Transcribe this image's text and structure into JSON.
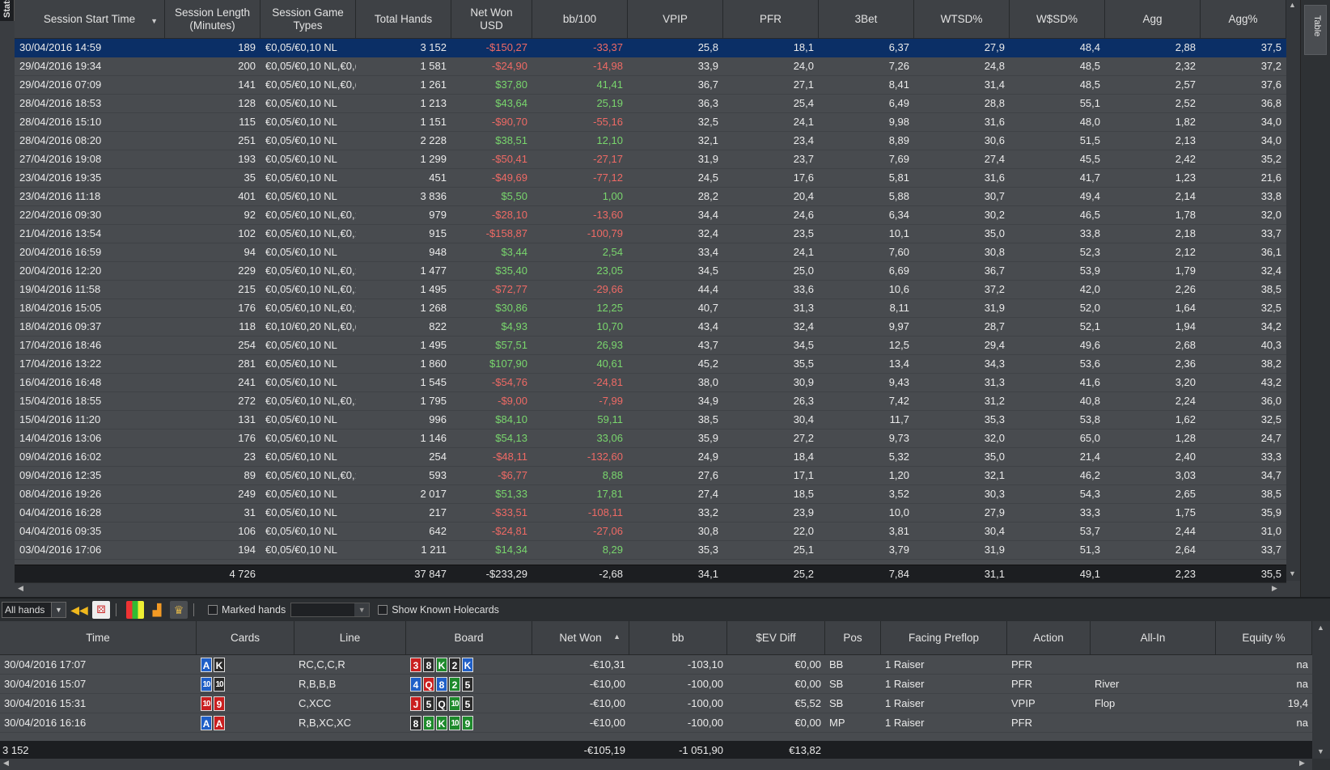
{
  "side_tabs": {
    "left": "Stats",
    "right": "Table"
  },
  "top_table": {
    "columns": [
      "Session Start Time",
      "Session Length\n(Minutes)",
      "Session Game\nTypes",
      "Total Hands",
      "Net Won\nUSD",
      "bb/100",
      "VPIP",
      "PFR",
      "3Bet",
      "WTSD%",
      "W$SD%",
      "Agg",
      "Agg%"
    ],
    "rows": [
      [
        "30/04/2016 14:59",
        "189",
        "€0,05/€0,10 NL",
        "3 152",
        "-$150,27",
        "-33,37",
        "25,8",
        "18,1",
        "6,37",
        "27,9",
        "48,4",
        "2,88",
        "37,5"
      ],
      [
        "29/04/2016 19:34",
        "200",
        "€0,05/€0,10 NL,€0,(",
        "1 581",
        "-$24,90",
        "-14,98",
        "33,9",
        "24,0",
        "7,26",
        "24,8",
        "48,5",
        "2,32",
        "37,2"
      ],
      [
        "29/04/2016 07:09",
        "141",
        "€0,05/€0,10 NL,€0,(",
        "1 261",
        "$37,80",
        "41,41",
        "36,7",
        "27,1",
        "8,41",
        "31,4",
        "48,5",
        "2,57",
        "37,6"
      ],
      [
        "28/04/2016 18:53",
        "128",
        "€0,05/€0,10 NL",
        "1 213",
        "$43,64",
        "25,19",
        "36,3",
        "25,4",
        "6,49",
        "28,8",
        "55,1",
        "2,52",
        "36,8"
      ],
      [
        "28/04/2016 15:10",
        "115",
        "€0,05/€0,10 NL",
        "1 151",
        "-$90,70",
        "-55,16",
        "32,5",
        "24,1",
        "9,98",
        "31,6",
        "48,0",
        "1,82",
        "34,0"
      ],
      [
        "28/04/2016 08:20",
        "251",
        "€0,05/€0,10 NL",
        "2 228",
        "$38,51",
        "12,10",
        "32,1",
        "23,4",
        "8,89",
        "30,6",
        "51,5",
        "2,13",
        "34,0"
      ],
      [
        "27/04/2016 19:08",
        "193",
        "€0,05/€0,10 NL",
        "1 299",
        "-$50,41",
        "-27,17",
        "31,9",
        "23,7",
        "7,69",
        "27,4",
        "45,5",
        "2,42",
        "35,2"
      ],
      [
        "23/04/2016 19:35",
        "35",
        "€0,05/€0,10 NL",
        "451",
        "-$49,69",
        "-77,12",
        "24,5",
        "17,6",
        "5,81",
        "31,6",
        "41,7",
        "1,23",
        "21,6"
      ],
      [
        "23/04/2016 11:18",
        "401",
        "€0,05/€0,10 NL",
        "3 836",
        "$5,50",
        "1,00",
        "28,2",
        "20,4",
        "5,88",
        "30,7",
        "49,4",
        "2,14",
        "33,8"
      ],
      [
        "22/04/2016 09:30",
        "92",
        "€0,05/€0,10 NL,€0,:",
        "979",
        "-$28,10",
        "-13,60",
        "34,4",
        "24,6",
        "6,34",
        "30,2",
        "46,5",
        "1,78",
        "32,0"
      ],
      [
        "21/04/2016 13:54",
        "102",
        "€0,05/€0,10 NL,€0,:",
        "915",
        "-$158,87",
        "-100,79",
        "32,4",
        "23,5",
        "10,1",
        "35,0",
        "33,8",
        "2,18",
        "33,7"
      ],
      [
        "20/04/2016 16:59",
        "94",
        "€0,05/€0,10 NL",
        "948",
        "$3,44",
        "2,54",
        "33,4",
        "24,1",
        "7,60",
        "30,8",
        "52,3",
        "2,12",
        "36,1"
      ],
      [
        "20/04/2016 12:20",
        "229",
        "€0,05/€0,10 NL,€0,:",
        "1 477",
        "$35,40",
        "23,05",
        "34,5",
        "25,0",
        "6,69",
        "36,7",
        "53,9",
        "1,79",
        "32,4"
      ],
      [
        "19/04/2016 11:58",
        "215",
        "€0,05/€0,10 NL,€0,:",
        "1 495",
        "-$72,77",
        "-29,66",
        "44,4",
        "33,6",
        "10,6",
        "37,2",
        "42,0",
        "2,26",
        "38,5"
      ],
      [
        "18/04/2016 15:05",
        "176",
        "€0,05/€0,10 NL,€0,:",
        "1 268",
        "$30,86",
        "12,25",
        "40,7",
        "31,3",
        "8,11",
        "31,9",
        "52,0",
        "1,64",
        "32,5"
      ],
      [
        "18/04/2016 09:37",
        "118",
        "€0,10/€0,20 NL,€0,(",
        "822",
        "$4,93",
        "10,70",
        "43,4",
        "32,4",
        "9,97",
        "28,7",
        "52,1",
        "1,94",
        "34,2"
      ],
      [
        "17/04/2016 18:46",
        "254",
        "€0,05/€0,10 NL",
        "1 495",
        "$57,51",
        "26,93",
        "43,7",
        "34,5",
        "12,5",
        "29,4",
        "49,6",
        "2,68",
        "40,3"
      ],
      [
        "17/04/2016 13:22",
        "281",
        "€0,05/€0,10 NL",
        "1 860",
        "$107,90",
        "40,61",
        "45,2",
        "35,5",
        "13,4",
        "34,3",
        "53,6",
        "2,36",
        "38,2"
      ],
      [
        "16/04/2016 16:48",
        "241",
        "€0,05/€0,10 NL",
        "1 545",
        "-$54,76",
        "-24,81",
        "38,0",
        "30,9",
        "9,43",
        "31,3",
        "41,6",
        "3,20",
        "43,2"
      ],
      [
        "15/04/2016 18:55",
        "272",
        "€0,05/€0,10 NL,€0,:",
        "1 795",
        "-$9,00",
        "-7,99",
        "34,9",
        "26,3",
        "7,42",
        "31,2",
        "40,8",
        "2,24",
        "36,0"
      ],
      [
        "15/04/2016 11:20",
        "131",
        "€0,05/€0,10 NL",
        "996",
        "$84,10",
        "59,11",
        "38,5",
        "30,4",
        "11,7",
        "35,3",
        "53,8",
        "1,62",
        "32,5"
      ],
      [
        "14/04/2016 13:06",
        "176",
        "€0,05/€0,10 NL",
        "1 146",
        "$54,13",
        "33,06",
        "35,9",
        "27,2",
        "9,73",
        "32,0",
        "65,0",
        "1,28",
        "24,7"
      ],
      [
        "09/04/2016 16:02",
        "23",
        "€0,05/€0,10 NL",
        "254",
        "-$48,11",
        "-132,60",
        "24,9",
        "18,4",
        "5,32",
        "35,0",
        "21,4",
        "2,40",
        "33,3"
      ],
      [
        "09/04/2016 12:35",
        "89",
        "€0,05/€0,10 NL,€0,:",
        "593",
        "-$6,77",
        "8,88",
        "27,6",
        "17,1",
        "1,20",
        "32,1",
        "46,2",
        "3,03",
        "34,7"
      ],
      [
        "08/04/2016 19:26",
        "249",
        "€0,05/€0,10 NL",
        "2 017",
        "$51,33",
        "17,81",
        "27,4",
        "18,5",
        "3,52",
        "30,3",
        "54,3",
        "2,65",
        "38,5"
      ],
      [
        "04/04/2016 16:28",
        "31",
        "€0,05/€0,10 NL",
        "217",
        "-$33,51",
        "-108,11",
        "33,2",
        "23,9",
        "10,0",
        "27,9",
        "33,3",
        "1,75",
        "35,9"
      ],
      [
        "04/04/2016 09:35",
        "106",
        "€0,05/€0,10 NL",
        "642",
        "-$24,81",
        "-27,06",
        "30,8",
        "22,0",
        "3,81",
        "30,4",
        "53,7",
        "2,44",
        "31,0"
      ],
      [
        "03/04/2016 17:06",
        "194",
        "€0,05/€0,10 NL",
        "1 211",
        "$14,34",
        "8,29",
        "35,3",
        "25,1",
        "3,79",
        "31,9",
        "51,3",
        "2,64",
        "33,7"
      ]
    ],
    "totals": [
      "",
      "4 726",
      "",
      "37 847",
      "-$233,29",
      "-2,68",
      "34,1",
      "25,2",
      "7,84",
      "31,1",
      "49,1",
      "2,23",
      "35,5"
    ]
  },
  "toolbar": {
    "filter_value": "All hands",
    "marked_hands_label": "Marked hands",
    "show_known_label": "Show Known Holecards"
  },
  "bottom_table": {
    "columns": [
      "Time",
      "Cards",
      "Line",
      "Board",
      "Net Won",
      "bb",
      "$EV Diff",
      "Pos",
      "Facing Preflop",
      "Action",
      "All-In",
      "Equity %"
    ],
    "rows": [
      {
        "time": "30/04/2016 17:07",
        "cards": [
          [
            "A",
            "d"
          ],
          [
            "K",
            "s"
          ]
        ],
        "line": "RC,C,C,R",
        "board": [
          [
            "3",
            "h"
          ],
          [
            "8",
            "s"
          ],
          [
            "K",
            "c"
          ],
          [
            "2",
            "s"
          ],
          [
            "K",
            "d"
          ]
        ],
        "net_won": "-€10,31",
        "bb": "-103,10",
        "ev_diff": "€0,00",
        "pos": "BB",
        "facing": "1 Raiser",
        "action": "PFR",
        "allin": "",
        "equity": "na"
      },
      {
        "time": "30/04/2016 15:07",
        "cards": [
          [
            "10",
            "d"
          ],
          [
            "10",
            "s"
          ]
        ],
        "line": "R,B,B,B",
        "board": [
          [
            "4",
            "d"
          ],
          [
            "Q",
            "h"
          ],
          [
            "8",
            "d"
          ],
          [
            "2",
            "c"
          ],
          [
            "5",
            "s"
          ]
        ],
        "net_won": "-€10,00",
        "bb": "-100,00",
        "ev_diff": "€0,00",
        "pos": "SB",
        "facing": "1 Raiser",
        "action": "PFR",
        "allin": "River",
        "equity": "na"
      },
      {
        "time": "30/04/2016 15:31",
        "cards": [
          [
            "10",
            "h"
          ],
          [
            "9",
            "h"
          ]
        ],
        "line": "C,XCC",
        "board": [
          [
            "J",
            "h"
          ],
          [
            "5",
            "s"
          ],
          [
            "Q",
            "s"
          ],
          [
            "10",
            "c"
          ],
          [
            "5",
            "s"
          ]
        ],
        "net_won": "-€10,00",
        "bb": "-100,00",
        "ev_diff": "€5,52",
        "pos": "SB",
        "facing": "1 Raiser",
        "action": "VPIP",
        "allin": "Flop",
        "equity": "19,4"
      },
      {
        "time": "30/04/2016 16:16",
        "cards": [
          [
            "A",
            "d"
          ],
          [
            "A",
            "h"
          ]
        ],
        "line": "R,B,XC,XC",
        "board": [
          [
            "8",
            "s"
          ],
          [
            "8",
            "c"
          ],
          [
            "K",
            "c"
          ],
          [
            "10",
            "c"
          ],
          [
            "9",
            "c"
          ]
        ],
        "net_won": "-€10,00",
        "bb": "-100,00",
        "ev_diff": "€0,00",
        "pos": "MP",
        "facing": "1 Raiser",
        "action": "PFR",
        "allin": "",
        "equity": "na"
      }
    ],
    "totals": {
      "count": "3 152",
      "net_won": "-€105,19",
      "bb": "-1 051,90",
      "ev_diff": "€13,82"
    }
  },
  "colors": {
    "positive": "#79d66d",
    "negative": "#ef6a65",
    "selected_row": "#0b2f66",
    "background": "#484b4f"
  },
  "icons": [
    "dropdown-arrow-icon",
    "rewind-icon",
    "dice-icon",
    "color-grid-icon",
    "bar-chart-icon",
    "trophy-icon",
    "sort-arrow-icon",
    "scroll-arrow-icon"
  ]
}
